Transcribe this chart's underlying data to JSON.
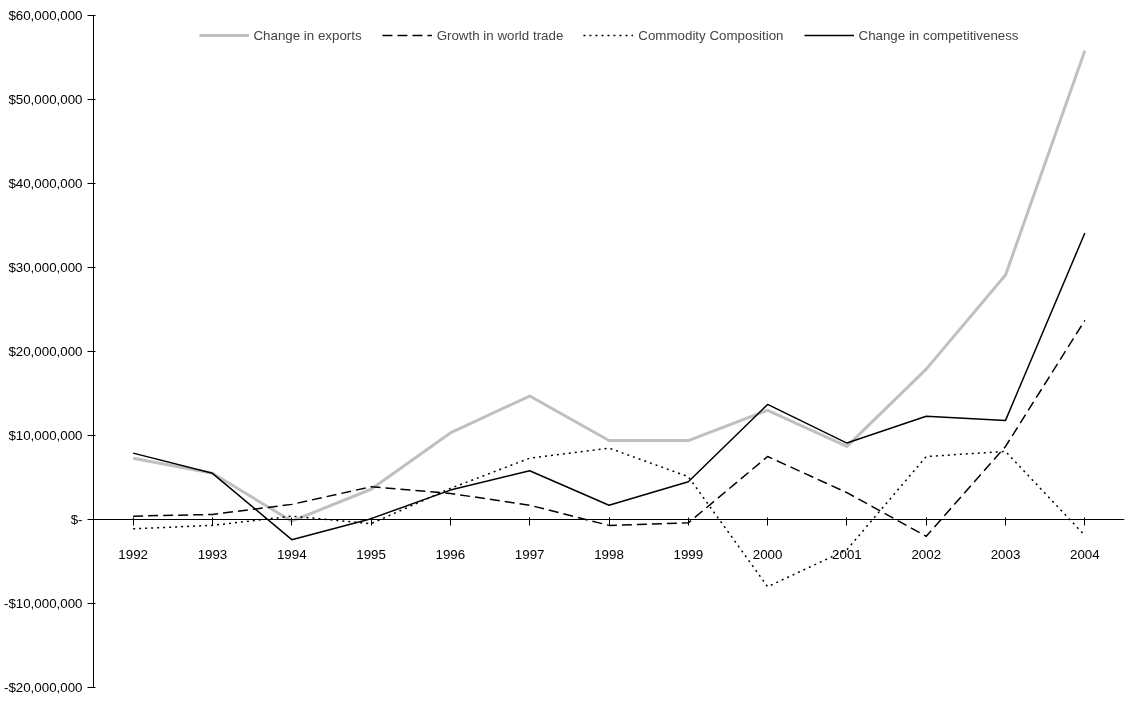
{
  "chart_data": {
    "type": "line",
    "categories": [
      "1992",
      "1993",
      "1994",
      "1995",
      "1996",
      "1997",
      "1998",
      "1999",
      "2000",
      "2001",
      "2002",
      "2003",
      "2004"
    ],
    "series": [
      {
        "name": "Change in exports",
        "color": "#c0c0c0",
        "line_style": "solid",
        "values": [
          7300000,
          5500000,
          -200000,
          3600000,
          10300000,
          14700000,
          9400000,
          9400000,
          13000000,
          8700000,
          17900000,
          29100000,
          55800000
        ]
      },
      {
        "name": "Growth in world trade",
        "color": "#000000",
        "line_style": "dashed",
        "values": [
          400000,
          600000,
          1800000,
          3900000,
          3100000,
          1700000,
          -700000,
          -400000,
          7500000,
          3200000,
          -2000000,
          8700000,
          23700000
        ]
      },
      {
        "name": "Commodity Composition",
        "color": "#000000",
        "line_style": "dotted",
        "values": [
          -1100000,
          -700000,
          400000,
          -500000,
          3700000,
          7300000,
          8500000,
          5100000,
          -8000000,
          -3600000,
          7500000,
          8100000,
          -1900000
        ]
      },
      {
        "name": "Change in competitiveness",
        "color": "#000000",
        "line_style": "solid",
        "values": [
          7900000,
          5500000,
          -2400000,
          100000,
          3500000,
          5800000,
          1700000,
          4500000,
          13700000,
          9100000,
          12300000,
          11800000,
          34100000
        ]
      }
    ],
    "ylim": [
      -20000000,
      60000000
    ],
    "yticks": [
      {
        "value": -20000000,
        "label": "-$20,000,000"
      },
      {
        "value": -10000000,
        "label": "-$10,000,000"
      },
      {
        "value": 0,
        "label": "$-"
      },
      {
        "value": 10000000,
        "label": "$10,000,000"
      },
      {
        "value": 20000000,
        "label": "$20,000,000"
      },
      {
        "value": 30000000,
        "label": "$30,000,000"
      },
      {
        "value": 40000000,
        "label": "$40,000,000"
      },
      {
        "value": 50000000,
        "label": "$50,000,000"
      },
      {
        "value": 60000000,
        "label": "$60,000,000"
      }
    ],
    "grid": false,
    "legend": "top"
  }
}
